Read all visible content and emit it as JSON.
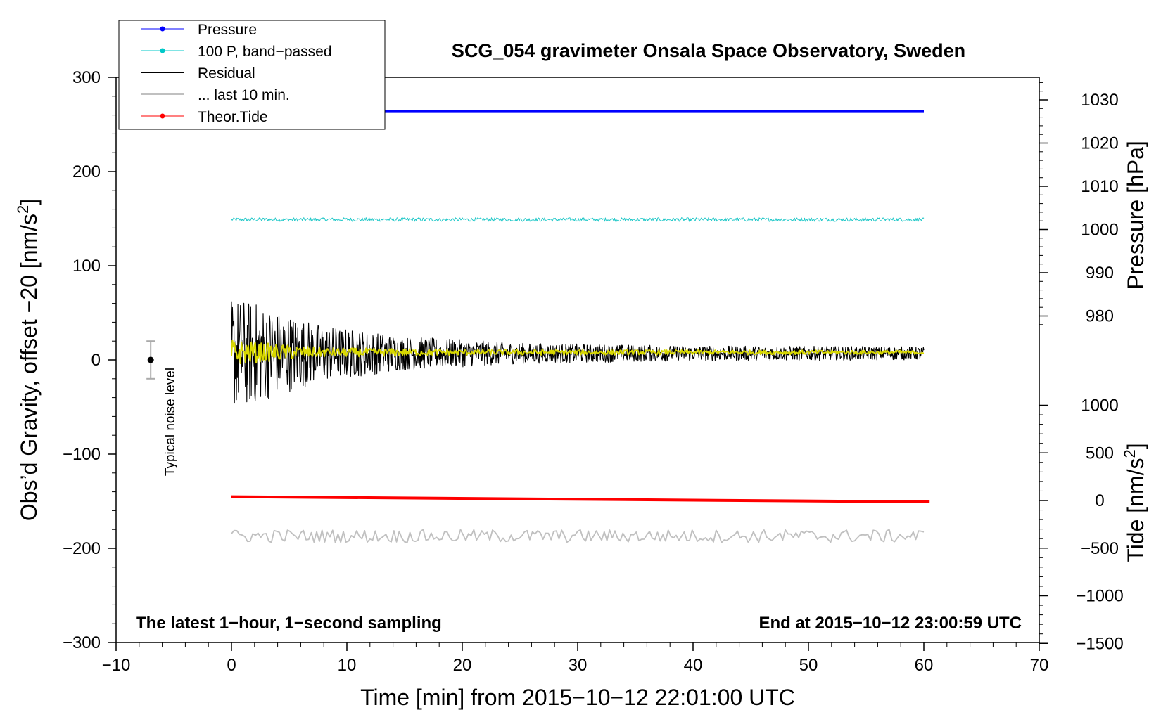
{
  "chart_data": {
    "type": "line",
    "title": "SCG_054 gravimeter Onsala Space Observatory, Sweden",
    "xlabel": "Time [min] from 2015−10−12 22:01:00 UTC",
    "ylabel": "Obs’d Gravity, offset −20 [nm/s²]",
    "xlim": [
      -10,
      70
    ],
    "ylim": [
      -300,
      300
    ],
    "x_ticks": [
      -10,
      0,
      10,
      20,
      30,
      40,
      50,
      60,
      70
    ],
    "y_ticks": [
      -300,
      -200,
      -100,
      0,
      100,
      200,
      300
    ],
    "x_tick_labels": [
      "−10",
      "0",
      "10",
      "20",
      "30",
      "40",
      "50",
      "60",
      "70"
    ],
    "y_tick_labels": [
      "−300",
      "−200",
      "−100",
      "0",
      "100",
      "200",
      "300"
    ],
    "pressure_axis": {
      "label": "Pressure [hPa]",
      "ticks": [
        980,
        990,
        1000,
        1010,
        1020,
        1030
      ],
      "tick_labels": [
        "980",
        "990",
        "1000",
        "1010",
        "1020",
        "1030"
      ]
    },
    "tide_axis": {
      "label": "Tide [nm/s²]",
      "ticks": [
        -1500,
        -1000,
        -500,
        0,
        500,
        1000
      ],
      "tick_labels": [
        "−1500",
        "−1000",
        "−500",
        "0",
        "500",
        "1000"
      ]
    },
    "legend": {
      "position": "top-left",
      "entries": [
        {
          "name": "Pressure",
          "color": "#0000ff",
          "marker": true
        },
        {
          "name": "100 P, band−passed",
          "color": "#00c8c8",
          "marker": true
        },
        {
          "name": "Residual",
          "color": "#000000",
          "marker": false
        },
        {
          "name": "... last 10 min.",
          "color": "#c0c0c0",
          "marker": false
        },
        {
          "name": "Theor.Tide",
          "color": "#ff0000",
          "marker": true
        }
      ]
    },
    "series": [
      {
        "name": "Pressure",
        "color": "#0000ff",
        "axis": "pressure_hPa",
        "x": [
          0,
          60
        ],
        "y": [
          1027.3,
          1027.3
        ]
      },
      {
        "name": "100 P, band−passed",
        "color": "#20c8c8",
        "axis": "gravity",
        "x_range": [
          0,
          60
        ],
        "level": 149,
        "amplitude": 2
      },
      {
        "name": "Residual",
        "color": "#000000",
        "axis": "gravity",
        "x_range": [
          0,
          60
        ],
        "level": 7,
        "envelope": [
          [
            0,
            60
          ],
          [
            2,
            55
          ],
          [
            4,
            45
          ],
          [
            8,
            30
          ],
          [
            15,
            18
          ],
          [
            25,
            11
          ],
          [
            40,
            8
          ],
          [
            60,
            7
          ]
        ]
      },
      {
        "name": "Residual smoothed",
        "color": "#d8d800",
        "axis": "gravity",
        "x_range": [
          0,
          60
        ],
        "level": 8,
        "envelope": [
          [
            0,
            14
          ],
          [
            3,
            10
          ],
          [
            8,
            5
          ],
          [
            20,
            3
          ],
          [
            60,
            2
          ]
        ]
      },
      {
        "name": "Theor.Tide",
        "color": "#ff0000",
        "axis": "tide_nm_s2",
        "x": [
          0,
          60.5
        ],
        "y": [
          40,
          -15
        ]
      },
      {
        "name": "... last 10 min.",
        "color": "#c0c0c0",
        "axis": "gravity",
        "x_range": [
          0,
          60
        ],
        "level": -187,
        "amplitude": 7
      }
    ],
    "noise_level": {
      "label": "Typical noise level",
      "x": -7,
      "y": 0,
      "range": [
        -20,
        20
      ]
    },
    "annotations": {
      "left": "The latest 1−hour, 1−second sampling",
      "right": "End at 2015−10−12 23:00:59 UTC"
    }
  }
}
